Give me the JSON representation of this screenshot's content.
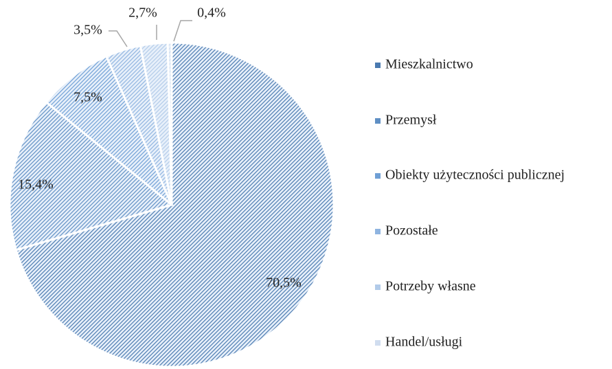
{
  "chart_data": {
    "type": "pie",
    "categories": [
      "Mieszkalnictwo",
      "Przemysł",
      "Obiekty użyteczności publicznej",
      "Pozostałe",
      "Potrzeby własne",
      "Handel/usługi"
    ],
    "values": [
      70.5,
      15.4,
      7.5,
      3.5,
      2.7,
      0.4
    ],
    "value_labels": [
      "70,5%",
      "15,4%",
      "7,5%",
      "3,5%",
      "2,7%",
      "0,4%"
    ],
    "colors": [
      "#4a7ab0",
      "#5f8fc4",
      "#6e9fd5",
      "#8fb4e0",
      "#b2cbe9",
      "#d0ddef"
    ],
    "legend": "right"
  }
}
